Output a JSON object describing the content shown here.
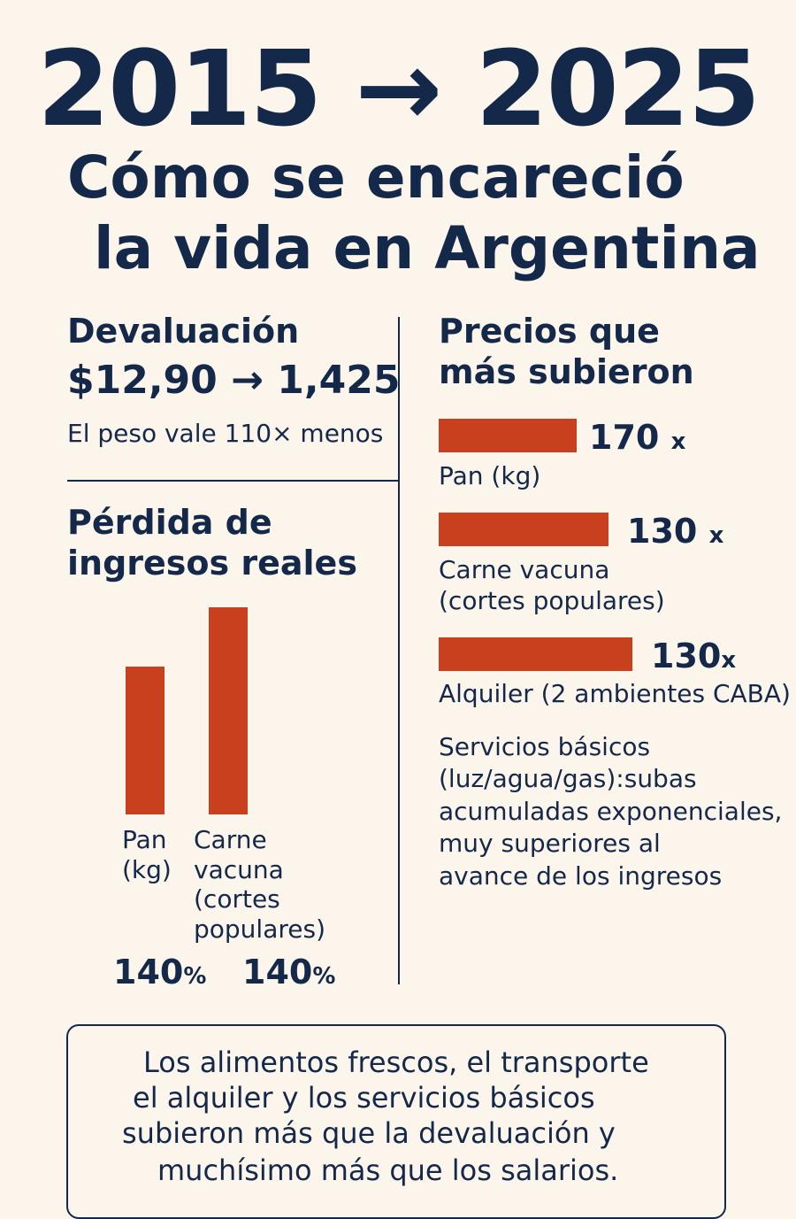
{
  "header": {
    "years": "2015 → 2025",
    "title_line1": "Cómo se encareció",
    "title_line2": "la vida en Argentina"
  },
  "devaluation": {
    "heading": "Devaluación",
    "rate": "$12,90 → 1,425",
    "note": "El peso vale 110× menos"
  },
  "income_loss": {
    "heading_line1": "Pérdida de",
    "heading_line2": "ingresos reales",
    "items": [
      {
        "label_lines": [
          "Pan",
          "(kg)"
        ],
        "value": "140",
        "unit": "%"
      },
      {
        "label_lines": [
          "Carne",
          "vacuna",
          "(cortes",
          "populares)"
        ],
        "value": "140",
        "unit": "%"
      }
    ]
  },
  "prices": {
    "heading_line1": "Precios que",
    "heading_line2": "más subieron",
    "items": [
      {
        "value": "170",
        "unit": "x",
        "label_lines": [
          "Pan (kg)"
        ]
      },
      {
        "value": "130",
        "unit": "x",
        "label_lines": [
          "Carne vacuna",
          "(cortes populares)"
        ]
      },
      {
        "value": "130",
        "unit": "x",
        "label_lines": [
          "Alquiler (2 ambientes CABA)"
        ]
      }
    ],
    "services_lines": [
      "Servicios básicos",
      "(luz/agua/gas):subas",
      "acumuladas exponenciales,",
      "muy superiores al",
      "avance de los ingresos"
    ]
  },
  "conclusion": {
    "lines": [
      "Los alimentos frescos, el transporte",
      "el alquiler y los servicios básicos",
      "subieron más que la devaluación y",
      "muchísimo más que los salarios."
    ]
  },
  "colors": {
    "accent": "#c8401e",
    "ink": "#14284a",
    "background": "#fcf5ec"
  },
  "chart_data": [
    {
      "type": "bar",
      "title": "Pérdida de ingresos reales",
      "categories": [
        "Pan (kg)",
        "Carne vacuna (cortes populares)"
      ],
      "values": [
        140,
        140
      ],
      "value_labels": [
        "140%",
        "140%"
      ]
    },
    {
      "type": "bar",
      "orientation": "horizontal",
      "title": "Precios que más subieron",
      "categories": [
        "Pan (kg)",
        "Carne vacuna (cortes populares)",
        "Alquiler (2 ambientes CABA)"
      ],
      "values": [
        170,
        130,
        130
      ],
      "value_labels": [
        "170x",
        "130x",
        "130x"
      ]
    }
  ]
}
